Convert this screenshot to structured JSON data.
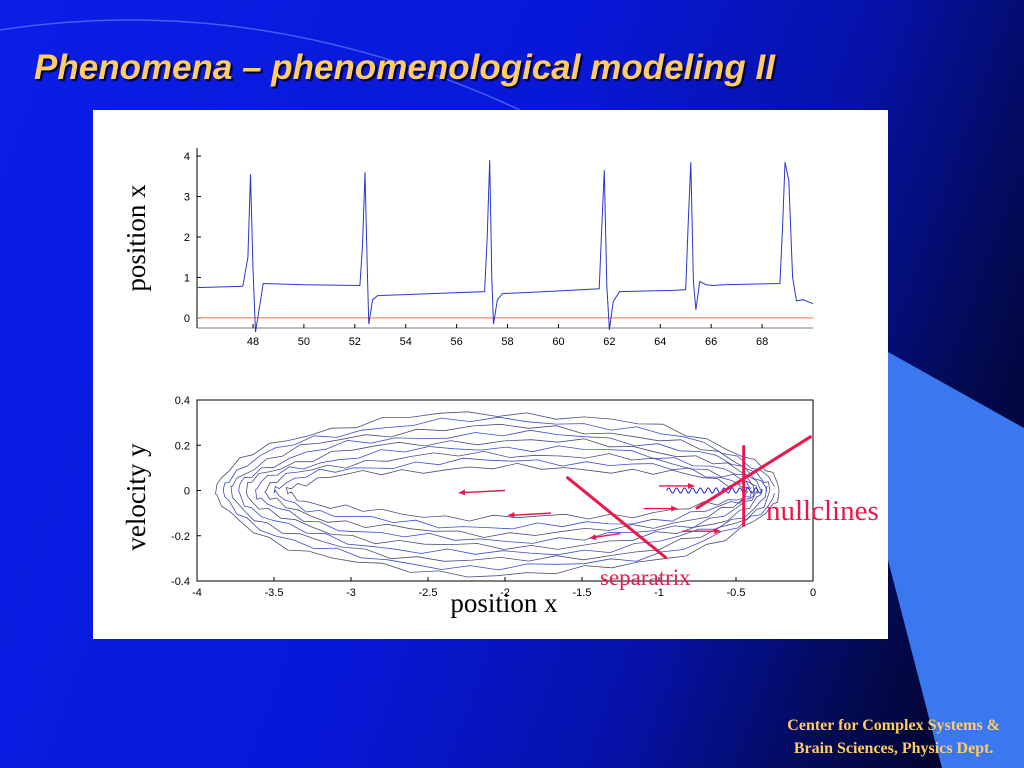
{
  "slide": {
    "title": "Phenomena – phenomenological modeling II",
    "footer_line1": "Center for Complex Systems &",
    "footer_line2": "Brain Sciences, Physics Dept."
  },
  "colors": {
    "title": "#ffcc66",
    "trace": "#2a36c8",
    "orbit": "#3a3a6a",
    "baseline": "#ff6a40",
    "annotation": "#e8184a"
  },
  "chart_data": [
    {
      "type": "line",
      "title": "",
      "xlabel": "",
      "ylabel": "position x",
      "xlim": [
        45.8,
        70
      ],
      "ylim": [
        -0.25,
        4.2
      ],
      "xticks": [
        "48",
        "50",
        "52",
        "54",
        "56",
        "58",
        "60",
        "62",
        "64",
        "66",
        "68"
      ],
      "yticks": [
        "0",
        "1",
        "2",
        "3",
        "4"
      ],
      "grid": false,
      "spikes": [
        {
          "t": 47.9,
          "peak": 3.55
        },
        {
          "t": 52.4,
          "peak": 3.6
        },
        {
          "t": 57.3,
          "peak": 3.9
        },
        {
          "t": 61.8,
          "peak": 3.65
        },
        {
          "t": 65.2,
          "peak": 3.85
        },
        {
          "t": 68.9,
          "peak": 3.85
        }
      ],
      "baseline_value": 0,
      "series": [
        {
          "x": [
            45.8,
            47.6,
            47.8,
            47.9,
            48.0,
            48.1,
            48.2,
            48.4,
            50.0,
            52.2,
            52.3,
            52.4,
            52.5,
            52.55,
            52.7,
            52.9,
            55.0,
            57.1,
            57.2,
            57.3,
            57.38,
            57.45,
            57.6,
            57.8,
            59.5,
            61.6,
            61.7,
            61.8,
            61.9,
            62.0,
            62.15,
            62.4,
            64.5,
            65.0,
            65.1,
            65.2,
            65.3,
            65.4,
            65.55,
            65.8,
            66.1,
            66.5,
            68.7,
            68.8,
            68.9,
            69.05,
            69.2,
            69.35,
            69.6,
            70.0
          ],
          "y": [
            0.75,
            0.78,
            1.5,
            3.55,
            1.2,
            -0.35,
            0.05,
            0.85,
            0.82,
            0.8,
            1.8,
            3.6,
            1.0,
            -0.15,
            0.45,
            0.55,
            0.6,
            0.65,
            2.0,
            3.9,
            1.0,
            -0.15,
            0.45,
            0.6,
            0.65,
            0.72,
            2.2,
            3.65,
            0.8,
            -0.3,
            0.4,
            0.65,
            0.68,
            0.7,
            2.4,
            3.85,
            0.9,
            0.2,
            0.9,
            0.82,
            0.8,
            0.82,
            0.85,
            2.2,
            3.85,
            3.4,
            1.0,
            0.42,
            0.45,
            0.35
          ]
        }
      ]
    },
    {
      "type": "line",
      "title": "",
      "xlabel": "position x",
      "ylabel": "velocity y",
      "xlim": [
        -4,
        0
      ],
      "ylim": [
        -0.4,
        0.4
      ],
      "xticks": [
        "-4",
        "-3.5",
        "-3",
        "-2.5",
        "-2",
        "-1.5",
        "-1",
        "-0.5",
        "0"
      ],
      "yticks": [
        "0.4",
        "0.2",
        "0",
        "-0.2",
        "-0.4"
      ],
      "grid": false,
      "orbits": [
        {
          "left": -3.88,
          "right": -0.22,
          "top": 0.34,
          "bottom": -0.37
        },
        {
          "left": -3.83,
          "right": -0.25,
          "top": 0.31,
          "bottom": -0.34
        },
        {
          "left": -3.78,
          "right": -0.28,
          "top": 0.28,
          "bottom": -0.31
        },
        {
          "left": -3.73,
          "right": -0.3,
          "top": 0.25,
          "bottom": -0.28
        },
        {
          "left": -3.68,
          "right": -0.33,
          "top": 0.22,
          "bottom": -0.25
        },
        {
          "left": -3.62,
          "right": -0.36,
          "top": 0.19,
          "bottom": -0.22
        },
        {
          "left": -3.56,
          "right": -0.38,
          "top": 0.16,
          "bottom": -0.19
        },
        {
          "left": -3.5,
          "right": -0.4,
          "top": 0.13,
          "bottom": -0.16
        },
        {
          "left": -3.42,
          "right": -0.42,
          "top": 0.1,
          "bottom": -0.12
        }
      ],
      "fixed_point_x_range": [
        -0.95,
        -0.33
      ],
      "arrows": [
        {
          "from": [
            -2.0,
            0.0
          ],
          "to": [
            -2.3,
            -0.01
          ]
        },
        {
          "from": [
            -1.7,
            -0.1
          ],
          "to": [
            -1.98,
            -0.11
          ]
        },
        {
          "from": [
            -1.25,
            -0.19
          ],
          "to": [
            -1.45,
            -0.21
          ]
        },
        {
          "from": [
            -1.0,
            0.02
          ],
          "to": [
            -0.77,
            0.02
          ]
        },
        {
          "from": [
            -1.1,
            -0.08
          ],
          "to": [
            -0.88,
            -0.08
          ]
        },
        {
          "from": [
            -0.85,
            -0.18
          ],
          "to": [
            -0.6,
            -0.18
          ]
        }
      ],
      "annotation_lines": [
        {
          "name": "separatrix",
          "from": [
            -1.6,
            0.06
          ],
          "to": [
            -0.95,
            -0.3
          ]
        },
        {
          "name": "nullcline-vertical",
          "from": [
            -0.45,
            0.2
          ],
          "to": [
            -0.45,
            -0.16
          ]
        },
        {
          "name": "nullcline-diagonal",
          "from": [
            -0.76,
            -0.08
          ],
          "to": [
            -0.01,
            0.24
          ]
        }
      ],
      "annotations": [
        {
          "text": "nullclines"
        },
        {
          "text": "separatrix"
        }
      ]
    }
  ]
}
